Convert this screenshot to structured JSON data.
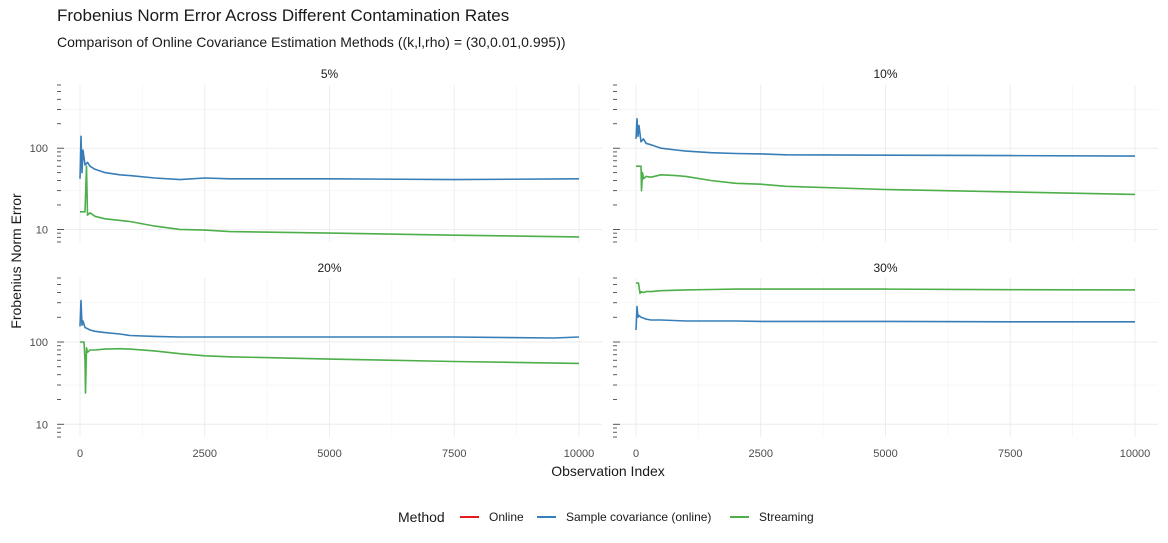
{
  "chart_data": {
    "type": "line",
    "title": "Frobenius Norm Error Across Different Contamination Rates",
    "subtitle": "Comparison of Online Covariance Estimation Methods ((k,l,rho) = (30,0.01,0.995))",
    "xlabel": "Observation Index",
    "ylabel": "Frobenius Norm Error",
    "y_scale": "log10",
    "xlim": [
      0,
      10000
    ],
    "x_ticks": [
      0,
      2500,
      5000,
      7500,
      10000
    ],
    "x_tick_labels": [
      "0",
      "2500",
      "5000",
      "7500",
      "10000"
    ],
    "ylim": [
      7,
      600
    ],
    "y_ticks": [
      10,
      100
    ],
    "y_tick_labels": [
      "10",
      "100"
    ],
    "grid": true,
    "legend": {
      "title": "Method",
      "position": "bottom",
      "entries": [
        {
          "name": "Online",
          "color": "#E41A1C"
        },
        {
          "name": "Sample covariance (online)",
          "color": "#377EB8"
        },
        {
          "name": "Streaming",
          "color": "#4DAF4A"
        }
      ]
    },
    "panels": [
      {
        "label": "5%",
        "series": [
          {
            "name": "Sample covariance (online)",
            "color": "#377EB8",
            "x": [
              0,
              20,
              40,
              60,
              100,
              150,
              200,
              300,
              500,
              800,
              1000,
              1500,
              2000,
              2500,
              3000,
              5000,
              7500,
              10000
            ],
            "y": [
              42,
              140,
              50,
              95,
              62,
              67,
              60,
              55,
              50,
              47,
              46,
              43,
              41,
              43,
              42,
              42,
              41,
              42
            ]
          },
          {
            "name": "Streaming",
            "color": "#4DAF4A",
            "x": [
              0,
              100,
              130,
              150,
              200,
              300,
              500,
              1000,
              1500,
              2000,
              2500,
              3000,
              5000,
              7500,
              10000
            ],
            "y": [
              16.5,
              16.5,
              60,
              15,
              16,
              14.5,
              13.5,
              12.5,
              11,
              10,
              9.8,
              9.4,
              9,
              8.5,
              8.1
            ]
          }
        ]
      },
      {
        "label": "10%",
        "series": [
          {
            "name": "Sample covariance (online)",
            "color": "#377EB8",
            "x": [
              0,
              20,
              40,
              60,
              100,
              150,
              200,
              300,
              500,
              800,
              1000,
              1500,
              2000,
              2500,
              3000,
              5000,
              7500,
              10000
            ],
            "y": [
              130,
              230,
              140,
              190,
              120,
              130,
              115,
              110,
              100,
              95,
              92,
              88,
              86,
              85,
              83,
              82,
              81,
              80
            ]
          },
          {
            "name": "Streaming",
            "color": "#4DAF4A",
            "x": [
              0,
              100,
              110,
              130,
              150,
              200,
              300,
              500,
              800,
              1000,
              1500,
              2000,
              2500,
              3000,
              5000,
              7500,
              10000
            ],
            "y": [
              60,
              60,
              30,
              50,
              42,
              45,
              44,
              47,
              46,
              45,
              40,
              37,
              36,
              34,
              31,
              29,
              27
            ]
          }
        ]
      },
      {
        "label": "20%",
        "series": [
          {
            "name": "Sample covariance (online)",
            "color": "#377EB8",
            "x": [
              0,
              20,
              40,
              60,
              100,
              150,
              200,
              300,
              500,
              800,
              1000,
              1500,
              2000,
              2500,
              5000,
              7500,
              9500,
              10000
            ],
            "y": [
              155,
              320,
              160,
              180,
              150,
              145,
              140,
              135,
              130,
              125,
              120,
              117,
              115,
              115,
              115,
              115,
              112,
              115
            ]
          },
          {
            "name": "Streaming",
            "color": "#4DAF4A",
            "x": [
              0,
              80,
              100,
              110,
              130,
              150,
              200,
              300,
              500,
              800,
              1000,
              1500,
              2000,
              2500,
              3000,
              5000,
              7500,
              10000
            ],
            "y": [
              100,
              100,
              60,
              24,
              85,
              75,
              80,
              80,
              82,
              83,
              82,
              78,
              72,
              68,
              66,
              62,
              58,
              55
            ]
          }
        ]
      },
      {
        "label": "30%",
        "series": [
          {
            "name": "Sample covariance (online)",
            "color": "#377EB8",
            "x": [
              0,
              20,
              40,
              60,
              100,
              150,
              200,
              300,
              500,
              1000,
              1500,
              2000,
              2500,
              5000,
              7500,
              10000
            ],
            "y": [
              140,
              270,
              200,
              210,
              200,
              195,
              190,
              185,
              185,
              180,
              180,
              180,
              178,
              178,
              176,
              176
            ]
          },
          {
            "name": "Streaming",
            "color": "#4DAF4A",
            "x": [
              0,
              50,
              80,
              100,
              150,
              200,
              300,
              500,
              1000,
              1500,
              2000,
              2500,
              5000,
              7500,
              10000
            ],
            "y": [
              520,
              520,
              390,
              410,
              400,
              410,
              410,
              420,
              430,
              435,
              440,
              440,
              440,
              432,
              430
            ]
          }
        ]
      }
    ]
  }
}
